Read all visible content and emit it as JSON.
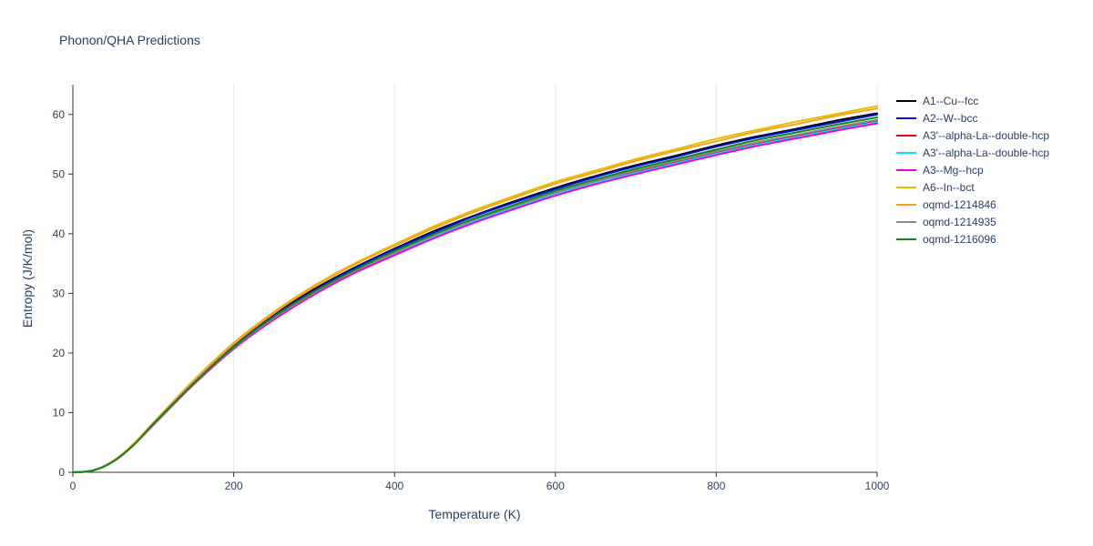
{
  "chart_data": {
    "type": "line",
    "title": "Phonon/QHA Predictions",
    "xlabel": "Temperature (K)",
    "ylabel": "Entropy (J/K/mol)",
    "xlim": [
      0,
      1000
    ],
    "ylim": [
      0,
      65
    ],
    "xticks": [
      0,
      200,
      400,
      600,
      800,
      1000
    ],
    "yticks": [
      0,
      10,
      20,
      30,
      40,
      50,
      60
    ],
    "grid": "vertical-only",
    "legend_position": "outside-right-top",
    "x": [
      0,
      25,
      50,
      75,
      100,
      150,
      200,
      250,
      300,
      350,
      400,
      450,
      500,
      550,
      600,
      650,
      700,
      750,
      800,
      850,
      900,
      950,
      1000
    ],
    "series": [
      {
        "name": "A1--Cu--fcc",
        "color": "#000000",
        "values": [
          0,
          0.3,
          1.8,
          4.6,
          8.2,
          15.1,
          21.3,
          26.4,
          30.7,
          34.3,
          37.5,
          40.5,
          43.1,
          45.5,
          47.7,
          49.7,
          51.5,
          53.1,
          54.8,
          56.3,
          57.6,
          59.0,
          60.2
        ]
      },
      {
        "name": "A2--W--bcc",
        "color": "#0011e0",
        "values": [
          0,
          0.3,
          1.8,
          4.6,
          8.1,
          15.1,
          21.2,
          26.3,
          30.5,
          34.2,
          37.4,
          40.3,
          43.0,
          45.3,
          47.5,
          49.5,
          51.3,
          52.9,
          54.6,
          56.1,
          57.4,
          58.7,
          60.0
        ]
      },
      {
        "name": "A3'--alpha-La--double-hcp",
        "color": "#e8000d",
        "values": [
          0,
          0.3,
          1.8,
          4.5,
          8.0,
          14.8,
          20.8,
          25.8,
          30.0,
          33.6,
          36.7,
          39.6,
          42.2,
          44.5,
          46.7,
          48.6,
          50.4,
          52.0,
          53.6,
          55.1,
          56.4,
          57.7,
          58.9
        ]
      },
      {
        "name": "A3'--alpha-La--double-hcp",
        "color": "#00e5ff",
        "values": [
          0,
          0.3,
          1.8,
          4.5,
          8.0,
          14.8,
          20.7,
          25.7,
          29.9,
          33.5,
          36.6,
          39.5,
          42.1,
          44.4,
          46.6,
          48.5,
          50.2,
          51.8,
          53.4,
          54.9,
          56.2,
          57.5,
          58.7
        ]
      },
      {
        "name": "A3--Mg--hcp",
        "color": "#f000dc",
        "values": [
          0,
          0.3,
          1.8,
          4.5,
          7.9,
          14.7,
          20.7,
          25.6,
          29.8,
          33.4,
          36.4,
          39.3,
          41.9,
          44.2,
          46.4,
          48.3,
          50.0,
          51.6,
          53.2,
          54.7,
          56.0,
          57.3,
          58.5
        ]
      },
      {
        "name": "A6--In--bct",
        "color": "#e3c000",
        "values": [
          0,
          0.3,
          1.9,
          4.7,
          8.3,
          15.4,
          21.7,
          26.9,
          31.3,
          35.0,
          38.2,
          41.3,
          44.0,
          46.4,
          48.7,
          50.6,
          52.5,
          54.2,
          55.9,
          57.4,
          58.8,
          60.1,
          61.4
        ]
      },
      {
        "name": "oqmd-1214846",
        "color": "#ff9e1b",
        "values": [
          0,
          0.3,
          1.9,
          4.7,
          8.3,
          15.3,
          21.5,
          26.7,
          31.1,
          34.8,
          38.0,
          41.0,
          43.7,
          46.1,
          48.4,
          50.3,
          52.2,
          53.9,
          55.5,
          57.1,
          58.4,
          59.8,
          61.0
        ]
      },
      {
        "name": "oqmd-1214935",
        "color": "#888888",
        "values": [
          0,
          0.3,
          1.8,
          4.5,
          8.0,
          14.9,
          20.9,
          25.9,
          30.1,
          33.7,
          36.8,
          39.8,
          42.4,
          44.7,
          46.9,
          48.8,
          50.6,
          52.2,
          53.8,
          55.3,
          56.6,
          57.9,
          59.1
        ]
      },
      {
        "name": "oqmd-1216096",
        "color": "#15841d",
        "values": [
          0,
          0.3,
          1.8,
          4.5,
          8.1,
          14.9,
          21.0,
          26.1,
          30.3,
          33.9,
          37.1,
          40.0,
          42.6,
          44.9,
          47.2,
          49.1,
          50.9,
          52.5,
          54.1,
          55.7,
          57.0,
          58.3,
          59.5
        ]
      }
    ]
  },
  "colors": {
    "title_text": "#2a3f5f",
    "axis_text": "#2a3f5f",
    "axis_line": "#333333",
    "grid_line": "#e8e8e8",
    "background": "#ffffff"
  }
}
